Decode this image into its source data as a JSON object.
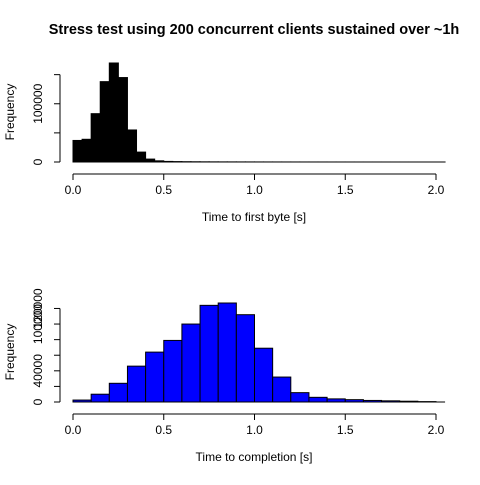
{
  "title": "Stress test using 200 concurrent clients sustained over ~1h",
  "chart_data": [
    {
      "type": "bar",
      "subtype": "histogram",
      "xlabel": "Time to first byte [s]",
      "ylabel": "Frequency",
      "fill_color": "#000000",
      "border_color": "#000000",
      "bin_width": 0.05,
      "bin_start": 0.0,
      "values": [
        37000,
        39000,
        83000,
        138000,
        170000,
        145000,
        55000,
        17000,
        5000,
        2000,
        1000,
        700,
        500,
        400,
        300,
        250,
        200,
        180,
        160,
        140,
        120,
        100,
        90,
        80,
        70,
        60,
        50,
        45,
        40,
        35,
        30,
        25,
        20,
        18,
        16,
        14,
        12,
        10,
        8,
        6,
        4
      ],
      "xlim": [
        0,
        2.05
      ],
      "ylim": [
        0,
        170000
      ],
      "xticks": [
        0,
        0.5,
        1,
        1.5,
        2
      ],
      "xtick_labels": [
        "0.0",
        "0.5",
        "1.0",
        "1.5",
        "2.0"
      ],
      "yticks": [
        0,
        100000
      ],
      "ytick_labels": [
        "0",
        "100000"
      ],
      "ytick_minor": [
        50000,
        150000
      ],
      "legend": "none",
      "grid": false
    },
    {
      "type": "bar",
      "subtype": "histogram",
      "xlabel": "Time to completion [s]",
      "ylabel": "Frequency",
      "fill_color": "#0000ff",
      "border_color": "#000000",
      "bin_width": 0.1,
      "bin_start": 0.0,
      "values": [
        2500,
        10000,
        24000,
        46000,
        64000,
        79000,
        100000,
        124000,
        127000,
        112000,
        69000,
        32000,
        12000,
        6000,
        4000,
        3000,
        2000,
        1500,
        1000,
        500
      ],
      "xlim": [
        0,
        2.05
      ],
      "ylim": [
        0,
        127000
      ],
      "xticks": [
        0,
        0.5,
        1,
        1.5,
        2
      ],
      "xtick_labels": [
        "0.0",
        "0.5",
        "1.0",
        "1.5",
        "2.0"
      ],
      "yticks": [
        0,
        40000,
        100000
      ],
      "ytick_labels": [
        "0",
        "40000",
        "100000"
      ],
      "ytick_minor": [
        20000,
        60000,
        80000,
        120000
      ],
      "ytick_minor_labels": [
        "",
        "",
        "",
        "120000"
      ],
      "legend": "none",
      "grid": false
    }
  ]
}
